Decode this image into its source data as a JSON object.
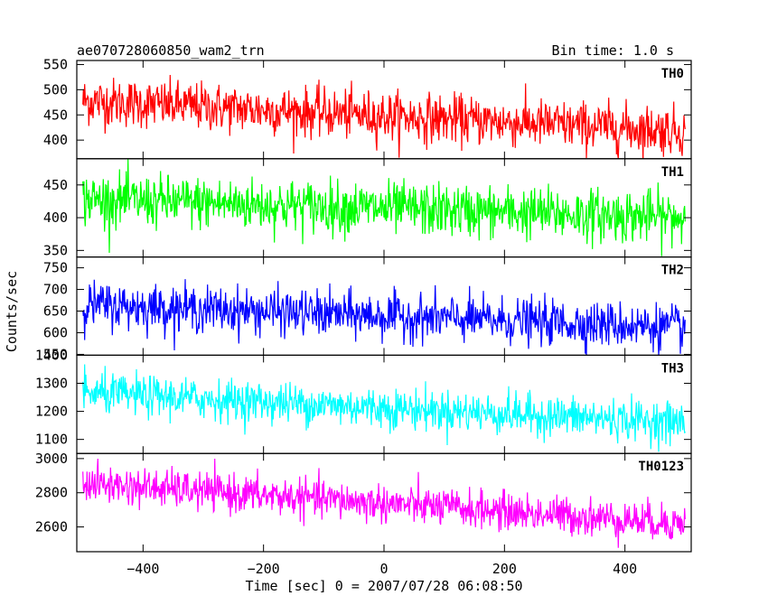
{
  "header": {
    "title": "ae070728060850_wam2_trn",
    "bin_time": "Bin time: 1.0 s"
  },
  "chart_data": {
    "type": "line",
    "xlabel": "Time [sec] 0 = 2007/07/28 06:08:50",
    "ylabel": "Counts/sec",
    "xlim": [
      -510,
      510
    ],
    "x_ticks": [
      -400,
      -200,
      0,
      200,
      400
    ],
    "x_tick_labels": [
      "−400",
      "−200",
      "0",
      "200",
      "400"
    ],
    "x_range_data": [
      -500,
      500
    ],
    "bin_time_s": 1.0,
    "panels": [
      {
        "name": "TH0",
        "color": "#ff0000",
        "ylim": [
          363,
          558
        ],
        "yticks": [
          400,
          450,
          500,
          550
        ],
        "ytick_labels": [
          "400",
          "450",
          "500",
          "550"
        ],
        "start_mean": 478,
        "end_mean": 418,
        "noise": 24
      },
      {
        "name": "TH1",
        "color": "#00ff00",
        "ylim": [
          340,
          490
        ],
        "yticks": [
          350,
          400,
          450
        ],
        "ytick_labels": [
          "350",
          "400",
          "450"
        ],
        "start_mean": 428,
        "end_mean": 400,
        "noise": 20
      },
      {
        "name": "TH2",
        "color": "#0000ff",
        "ylim": [
          548,
          775
        ],
        "yticks": [
          550,
          600,
          650,
          700,
          750
        ],
        "ytick_labels": [
          "550",
          "600",
          "650",
          "700",
          "750"
        ],
        "start_mean": 665,
        "end_mean": 612,
        "noise": 26
      },
      {
        "name": "TH3",
        "color": "#00ffff",
        "ylim": [
          1050,
          1400
        ],
        "yticks": [
          1100,
          1200,
          1300,
          1400
        ],
        "ytick_labels": [
          "1100",
          "1200",
          "1300",
          "1400"
        ],
        "start_mean": 1265,
        "end_mean": 1160,
        "noise": 36
      },
      {
        "name": "TH0123",
        "color": "#ff00ff",
        "ylim": [
          2455,
          3030
        ],
        "yticks": [
          2600,
          2800,
          3000
        ],
        "ytick_labels": [
          "2600",
          "2800",
          "3000"
        ],
        "start_mean": 2855,
        "end_mean": 2620,
        "noise": 55
      }
    ]
  }
}
